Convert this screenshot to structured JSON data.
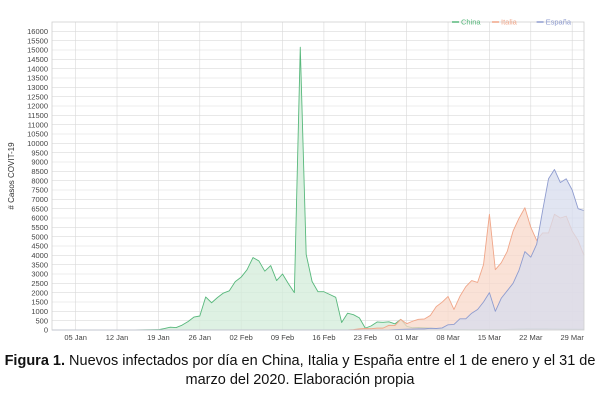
{
  "chart_data": {
    "type": "area",
    "ylabel": "# Casos COVIT-19",
    "x_range": [
      "2020-01-01",
      "2020-03-31"
    ],
    "x_ticks": [
      "05 Jan",
      "12 Jan",
      "19 Jan",
      "26 Jan",
      "02 Feb",
      "09 Feb",
      "16 Feb",
      "23 Feb",
      "01 Mar",
      "08 Mar",
      "15 Mar",
      "22 Mar",
      "29 Mar"
    ],
    "ylim": [
      0,
      16500
    ],
    "y_ticks": [
      "0",
      "500",
      "1000",
      "1500",
      "2000",
      "2500",
      "3000",
      "3500",
      "4000",
      "4500",
      "5000",
      "5500",
      "6000",
      "6500",
      "7000",
      "7500",
      "8000",
      "8500",
      "9000",
      "9500",
      "10000",
      "10500",
      "11000",
      "11500",
      "12000",
      "12500",
      "13000",
      "13500",
      "14000",
      "14500",
      "15000",
      "15500",
      "16000"
    ],
    "grid": true,
    "legend_position": "top-right",
    "series": [
      {
        "name": "China",
        "color": "#58b87c",
        "fill": "#d3ecd9",
        "points": [
          [
            "2020-01-01",
            0
          ],
          [
            "2020-01-15",
            0
          ],
          [
            "2020-01-19",
            20
          ],
          [
            "2020-01-20",
            80
          ],
          [
            "2020-01-21",
            150
          ],
          [
            "2020-01-22",
            130
          ],
          [
            "2020-01-23",
            260
          ],
          [
            "2020-01-24",
            450
          ],
          [
            "2020-01-25",
            690
          ],
          [
            "2020-01-26",
            750
          ],
          [
            "2020-01-27",
            1770
          ],
          [
            "2020-01-28",
            1460
          ],
          [
            "2020-01-29",
            1740
          ],
          [
            "2020-01-30",
            1980
          ],
          [
            "2020-01-31",
            2100
          ],
          [
            "2020-02-01",
            2590
          ],
          [
            "2020-02-02",
            2830
          ],
          [
            "2020-02-03",
            3230
          ],
          [
            "2020-02-04",
            3880
          ],
          [
            "2020-02-05",
            3700
          ],
          [
            "2020-02-06",
            3150
          ],
          [
            "2020-02-07",
            3450
          ],
          [
            "2020-02-08",
            2650
          ],
          [
            "2020-02-09",
            3000
          ],
          [
            "2020-02-10",
            2480
          ],
          [
            "2020-02-11",
            2000
          ],
          [
            "2020-02-12",
            15150
          ],
          [
            "2020-02-13",
            4050
          ],
          [
            "2020-02-14",
            2600
          ],
          [
            "2020-02-15",
            2050
          ],
          [
            "2020-02-16",
            2050
          ],
          [
            "2020-02-17",
            1900
          ],
          [
            "2020-02-18",
            1750
          ],
          [
            "2020-02-19",
            400
          ],
          [
            "2020-02-20",
            900
          ],
          [
            "2020-02-21",
            820
          ],
          [
            "2020-02-22",
            650
          ],
          [
            "2020-02-23",
            100
          ],
          [
            "2020-02-24",
            220
          ],
          [
            "2020-02-25",
            430
          ],
          [
            "2020-02-26",
            410
          ],
          [
            "2020-02-27",
            440
          ],
          [
            "2020-02-28",
            330
          ],
          [
            "2020-02-29",
            570
          ],
          [
            "2020-03-01",
            200
          ],
          [
            "2020-03-02",
            120
          ],
          [
            "2020-03-03",
            140
          ],
          [
            "2020-03-05",
            100
          ],
          [
            "2020-03-08",
            40
          ],
          [
            "2020-03-12",
            20
          ],
          [
            "2020-03-17",
            20
          ],
          [
            "2020-03-20",
            60
          ],
          [
            "2020-03-24",
            70
          ],
          [
            "2020-03-28",
            50
          ],
          [
            "2020-03-31",
            40
          ]
        ]
      },
      {
        "name": "Italia",
        "color": "#f0a689",
        "fill": "#f8d8c9",
        "points": [
          [
            "2020-01-01",
            0
          ],
          [
            "2020-02-20",
            0
          ],
          [
            "2020-02-21",
            20
          ],
          [
            "2020-02-22",
            60
          ],
          [
            "2020-02-23",
            80
          ],
          [
            "2020-02-24",
            70
          ],
          [
            "2020-02-25",
            100
          ],
          [
            "2020-02-26",
            100
          ],
          [
            "2020-02-27",
            250
          ],
          [
            "2020-02-28",
            240
          ],
          [
            "2020-02-29",
            570
          ],
          [
            "2020-03-01",
            340
          ],
          [
            "2020-03-02",
            470
          ],
          [
            "2020-03-03",
            570
          ],
          [
            "2020-03-04",
            590
          ],
          [
            "2020-03-05",
            780
          ],
          [
            "2020-03-06",
            1250
          ],
          [
            "2020-03-07",
            1490
          ],
          [
            "2020-03-08",
            1800
          ],
          [
            "2020-03-09",
            1100
          ],
          [
            "2020-03-10",
            1800
          ],
          [
            "2020-03-11",
            2320
          ],
          [
            "2020-03-12",
            2650
          ],
          [
            "2020-03-13",
            2550
          ],
          [
            "2020-03-14",
            3500
          ],
          [
            "2020-03-15",
            6200
          ],
          [
            "2020-03-16",
            3230
          ],
          [
            "2020-03-17",
            3600
          ],
          [
            "2020-03-18",
            4200
          ],
          [
            "2020-03-19",
            5300
          ],
          [
            "2020-03-20",
            5980
          ],
          [
            "2020-03-21",
            6550
          ],
          [
            "2020-03-22",
            5500
          ],
          [
            "2020-03-23",
            4800
          ],
          [
            "2020-03-24",
            5200
          ],
          [
            "2020-03-25",
            5200
          ],
          [
            "2020-03-26",
            6200
          ],
          [
            "2020-03-27",
            6000
          ],
          [
            "2020-03-28",
            6100
          ],
          [
            "2020-03-29",
            5300
          ],
          [
            "2020-03-30",
            4800
          ],
          [
            "2020-03-31",
            4000
          ]
        ]
      },
      {
        "name": "España",
        "color": "#8f9ccf",
        "fill": "#d7dcee",
        "points": [
          [
            "2020-01-01",
            0
          ],
          [
            "2020-02-27",
            0
          ],
          [
            "2020-02-28",
            20
          ],
          [
            "2020-03-01",
            40
          ],
          [
            "2020-03-02",
            50
          ],
          [
            "2020-03-03",
            60
          ],
          [
            "2020-03-04",
            60
          ],
          [
            "2020-03-05",
            90
          ],
          [
            "2020-03-06",
            80
          ],
          [
            "2020-03-07",
            110
          ],
          [
            "2020-03-08",
            280
          ],
          [
            "2020-03-09",
            300
          ],
          [
            "2020-03-10",
            600
          ],
          [
            "2020-03-11",
            600
          ],
          [
            "2020-03-12",
            900
          ],
          [
            "2020-03-13",
            1100
          ],
          [
            "2020-03-14",
            1500
          ],
          [
            "2020-03-15",
            2000
          ],
          [
            "2020-03-16",
            1000
          ],
          [
            "2020-03-17",
            1700
          ],
          [
            "2020-03-18",
            2100
          ],
          [
            "2020-03-19",
            2500
          ],
          [
            "2020-03-20",
            3200
          ],
          [
            "2020-03-21",
            4200
          ],
          [
            "2020-03-22",
            3900
          ],
          [
            "2020-03-23",
            4600
          ],
          [
            "2020-03-24",
            6400
          ],
          [
            "2020-03-25",
            8100
          ],
          [
            "2020-03-26",
            8600
          ],
          [
            "2020-03-27",
            7900
          ],
          [
            "2020-03-28",
            8100
          ],
          [
            "2020-03-29",
            7500
          ],
          [
            "2020-03-30",
            6500
          ],
          [
            "2020-03-31",
            6400
          ]
        ]
      }
    ]
  },
  "caption": {
    "label": "Figura 1.",
    "text": " Nuevos infectados por día en China, Italia y España entre el 1 de enero y el 31 de marzo del 2020. Elaboración propia"
  }
}
